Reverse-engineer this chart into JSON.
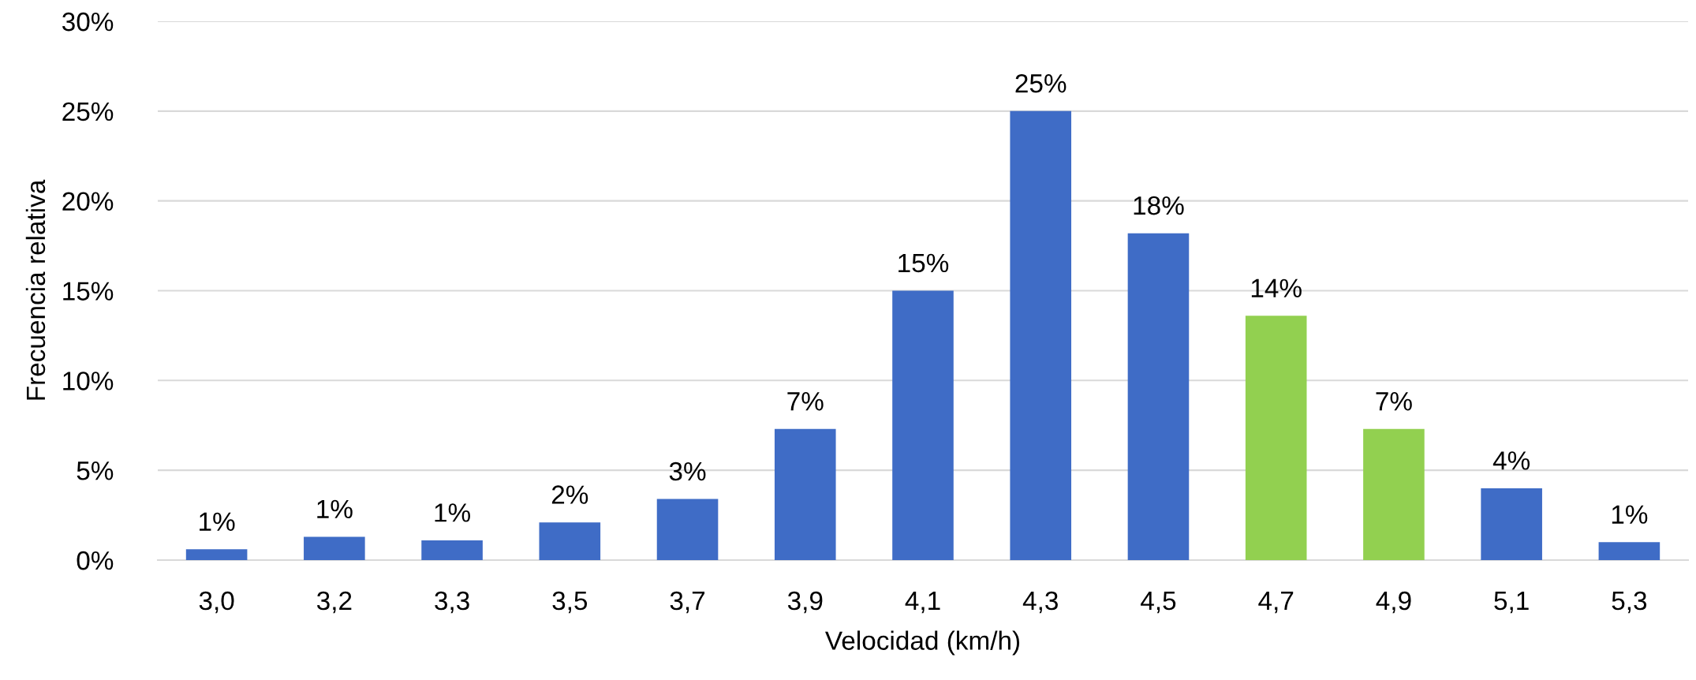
{
  "chart_data": {
    "type": "bar",
    "xlabel": "Velocidad (km/h)",
    "ylabel": "Frecuencia relativa",
    "categories": [
      "3,0",
      "3,2",
      "3,3",
      "3,5",
      "3,7",
      "3,9",
      "4,1",
      "4,3",
      "4,5",
      "4,7",
      "4,9",
      "5,1",
      "5,3"
    ],
    "values": [
      0.6,
      1.3,
      1.1,
      2.1,
      3.4,
      7.3,
      15.0,
      25.0,
      18.2,
      13.6,
      7.3,
      4.0,
      1.0
    ],
    "value_labels": [
      "1%",
      "1%",
      "1%",
      "2%",
      "3%",
      "7%",
      "15%",
      "25%",
      "18%",
      "14%",
      "7%",
      "4%",
      "1%"
    ],
    "colors": [
      "#3f6cc6",
      "#3f6cc6",
      "#3f6cc6",
      "#3f6cc6",
      "#3f6cc6",
      "#3f6cc6",
      "#3f6cc6",
      "#3f6cc6",
      "#3f6cc6",
      "#92d050",
      "#92d050",
      "#3f6cc6",
      "#3f6cc6"
    ],
    "ylim": [
      0,
      30
    ],
    "yticks": [
      {
        "value": 0,
        "label": "0%"
      },
      {
        "value": 5,
        "label": "5%"
      },
      {
        "value": 10,
        "label": "10%"
      },
      {
        "value": 15,
        "label": "15%"
      },
      {
        "value": 20,
        "label": "20%"
      },
      {
        "value": 25,
        "label": "25%"
      },
      {
        "value": 30,
        "label": "30%"
      }
    ],
    "grid": "y"
  }
}
